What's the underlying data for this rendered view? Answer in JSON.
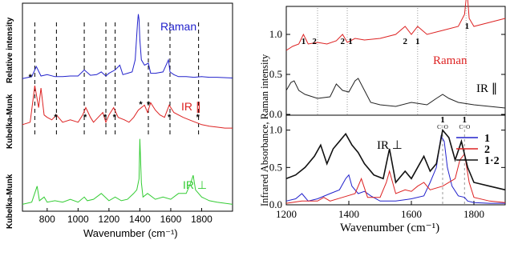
{
  "chart_data": [
    {
      "type": "line",
      "panel": "left",
      "xlabel": "Wavenumber (cm⁻¹)",
      "x_ticks": [
        800,
        1000,
        1200,
        1400,
        1600,
        1800
      ],
      "xlim": [
        640,
        2000
      ],
      "series": [
        {
          "name": "Raman",
          "color": "#2222cc",
          "ylabel": "Relative intensity",
          "x": [
            640,
            700,
            730,
            760,
            800,
            850,
            900,
            950,
            1000,
            1040,
            1080,
            1120,
            1150,
            1180,
            1200,
            1240,
            1270,
            1290,
            1320,
            1350,
            1370,
            1385,
            1390,
            1395,
            1400,
            1410,
            1430,
            1455,
            1470,
            1500,
            1550,
            1585,
            1595,
            1620,
            1650,
            1700,
            1750,
            1800,
            1850,
            1900,
            2000
          ],
          "y": [
            0.02,
            0.05,
            0.2,
            0.06,
            0.08,
            0.05,
            0.05,
            0.06,
            0.06,
            0.15,
            0.07,
            0.08,
            0.12,
            0.06,
            0.1,
            0.15,
            0.22,
            0.08,
            0.1,
            0.12,
            0.3,
            0.85,
            0.98,
            0.9,
            0.6,
            0.3,
            0.22,
            0.25,
            0.1,
            0.1,
            0.12,
            0.3,
            0.12,
            0.08,
            0.05,
            0.05,
            0.04,
            0.05,
            0.04,
            0.04,
            0.03
          ]
        },
        {
          "name": "IR ∥",
          "color": "#dd2222",
          "ylabel": "Kubelka-Munk",
          "x": [
            640,
            690,
            720,
            745,
            760,
            780,
            800,
            830,
            860,
            900,
            950,
            1000,
            1030,
            1050,
            1080,
            1100,
            1130,
            1160,
            1180,
            1200,
            1230,
            1260,
            1300,
            1330,
            1360,
            1390,
            1410,
            1430,
            1450,
            1470,
            1500,
            1530,
            1560,
            1590,
            1620,
            1650,
            1680,
            1720,
            1760,
            1800,
            1850,
            1900,
            1950,
            2000
          ],
          "y": [
            0.15,
            0.2,
            0.95,
            0.5,
            0.9,
            0.35,
            0.3,
            0.25,
            0.35,
            0.2,
            0.25,
            0.2,
            0.35,
            0.5,
            0.3,
            0.2,
            0.3,
            0.4,
            0.2,
            0.35,
            0.5,
            0.3,
            0.25,
            0.2,
            0.3,
            0.45,
            0.5,
            0.55,
            0.4,
            0.6,
            0.45,
            0.35,
            0.3,
            0.55,
            0.4,
            0.35,
            0.3,
            0.25,
            0.2,
            0.15,
            0.12,
            0.1,
            0.08,
            0.08
          ]
        },
        {
          "name": "IR ⊥",
          "color": "#33cc33",
          "ylabel": "Kubelka-Munk",
          "x": [
            640,
            700,
            735,
            750,
            780,
            800,
            850,
            900,
            950,
            1000,
            1040,
            1060,
            1100,
            1150,
            1200,
            1240,
            1280,
            1320,
            1360,
            1380,
            1395,
            1400,
            1410,
            1420,
            1450,
            1500,
            1550,
            1600,
            1650,
            1700,
            1730,
            1745,
            1760,
            1800,
            1850,
            1900,
            2000
          ],
          "y": [
            0.05,
            0.08,
            0.3,
            0.1,
            0.15,
            0.08,
            0.1,
            0.08,
            0.12,
            0.08,
            0.15,
            0.1,
            0.12,
            0.2,
            0.1,
            0.15,
            0.1,
            0.12,
            0.2,
            0.25,
            0.4,
            0.95,
            0.35,
            0.15,
            0.2,
            0.12,
            0.15,
            0.12,
            0.2,
            0.2,
            0.35,
            0.45,
            0.25,
            0.15,
            0.1,
            0.08,
            0.05
          ]
        }
      ],
      "dashed_markers_x": [
        720,
        860,
        1040,
        1180,
        1240,
        1455,
        1595,
        1780
      ],
      "asterisk_x": [
        695,
        860,
        1050,
        1180,
        1240,
        1410,
        1460,
        1595,
        1780
      ]
    },
    {
      "type": "line",
      "panel": "right-top",
      "ylabel": "Infrared Absorbance, Raman intensity",
      "xlim": [
        1200,
        1900
      ],
      "ylim": [
        0,
        1.25
      ],
      "y_ticks": [
        "0.0",
        "0.5",
        "1.0"
      ],
      "dotted_markers_x": [
        1300,
        1395,
        1620,
        1775
      ],
      "peak_labels": [
        {
          "x": 1255,
          "text": "1"
        },
        {
          "x": 1290,
          "text": "2"
        },
        {
          "x": 1380,
          "text": "2"
        },
        {
          "x": 1405,
          "text": "1"
        },
        {
          "x": 1580,
          "text": "2"
        },
        {
          "x": 1620,
          "text": "1"
        },
        {
          "x": 1778,
          "text": "1"
        }
      ],
      "series": [
        {
          "name": "Raman",
          "color": "#dd2222",
          "x": [
            1200,
            1220,
            1240,
            1255,
            1270,
            1300,
            1330,
            1360,
            1380,
            1395,
            1420,
            1450,
            1500,
            1550,
            1580,
            1600,
            1620,
            1650,
            1700,
            1750,
            1770,
            1778,
            1785,
            1800,
            1850,
            1900
          ],
          "y": [
            0.8,
            0.85,
            0.88,
            1.0,
            0.88,
            0.9,
            0.88,
            0.92,
            1.0,
            0.9,
            0.95,
            0.93,
            0.95,
            1.0,
            1.1,
            1.0,
            1.1,
            1.0,
            1.05,
            1.1,
            1.25,
            1.55,
            1.2,
            1.1,
            1.15,
            1.2
          ]
        },
        {
          "name": "IR ∥",
          "color": "#222222",
          "x": [
            1200,
            1215,
            1225,
            1240,
            1260,
            1300,
            1340,
            1360,
            1380,
            1400,
            1420,
            1430,
            1450,
            1470,
            1500,
            1550,
            1600,
            1650,
            1680,
            1700,
            1720,
            1750,
            1800,
            1850,
            1900
          ],
          "y": [
            0.3,
            0.4,
            0.42,
            0.3,
            0.25,
            0.2,
            0.22,
            0.38,
            0.3,
            0.28,
            0.42,
            0.45,
            0.3,
            0.15,
            0.12,
            0.1,
            0.15,
            0.12,
            0.2,
            0.25,
            0.2,
            0.15,
            0.12,
            0.1,
            0.08
          ]
        }
      ]
    },
    {
      "type": "line",
      "panel": "right-bottom",
      "xlabel": "Wavenumber (cm⁻¹)",
      "xlim": [
        1200,
        1900
      ],
      "ylim": [
        0,
        1.2
      ],
      "x_ticks": [
        1200,
        1400,
        1600,
        1800
      ],
      "y_ticks": [
        "0.0",
        "0.5",
        "1.0"
      ],
      "dashed_markers_x": [
        1700,
        1770
      ],
      "annotations": [
        {
          "x": 1700,
          "text": "1",
          "sub": "C=O"
        },
        {
          "x": 1770,
          "text": "1",
          "sub": "C=O"
        }
      ],
      "series": [
        {
          "name": "1",
          "color": "#2222cc",
          "x": [
            1200,
            1230,
            1250,
            1270,
            1300,
            1340,
            1370,
            1390,
            1400,
            1410,
            1430,
            1450,
            1470,
            1500,
            1550,
            1600,
            1640,
            1660,
            1680,
            1695,
            1705,
            1715,
            1730,
            1750,
            1770,
            1780,
            1800,
            1850,
            1900
          ],
          "y": [
            0.05,
            0.08,
            0.15,
            0.05,
            0.08,
            0.15,
            0.2,
            0.35,
            0.4,
            0.25,
            0.15,
            0.18,
            0.12,
            0.05,
            0.05,
            0.08,
            0.12,
            0.3,
            0.5,
            0.92,
            0.85,
            0.5,
            0.25,
            0.12,
            0.1,
            0.05,
            0.03,
            0.02,
            0.02
          ]
        },
        {
          "name": "2",
          "color": "#dd2222",
          "x": [
            1200,
            1250,
            1300,
            1320,
            1340,
            1380,
            1420,
            1440,
            1460,
            1500,
            1520,
            1530,
            1550,
            1580,
            1600,
            1620,
            1640,
            1660,
            1700,
            1740,
            1755,
            1770,
            1785,
            1800,
            1850,
            1900
          ],
          "y": [
            0.02,
            0.05,
            0.05,
            0.1,
            0.05,
            0.1,
            0.15,
            0.35,
            0.1,
            0.1,
            0.3,
            0.45,
            0.15,
            0.2,
            0.18,
            0.25,
            0.3,
            0.2,
            0.25,
            0.35,
            0.6,
            0.68,
            0.3,
            0.1,
            0.05,
            0.03
          ]
        },
        {
          "name": "1·2",
          "color": "#111111",
          "x": [
            1200,
            1230,
            1260,
            1290,
            1310,
            1330,
            1350,
            1370,
            1390,
            1410,
            1430,
            1450,
            1480,
            1510,
            1530,
            1550,
            1580,
            1600,
            1620,
            1640,
            1660,
            1680,
            1700,
            1720,
            1740,
            1760,
            1780,
            1800,
            1850,
            1900
          ],
          "y": [
            0.35,
            0.4,
            0.5,
            0.65,
            0.8,
            0.55,
            0.75,
            0.85,
            0.95,
            0.8,
            0.7,
            0.55,
            0.4,
            0.35,
            0.75,
            0.3,
            0.45,
            0.35,
            0.5,
            0.65,
            0.45,
            0.55,
            1.0,
            0.9,
            0.6,
            0.85,
            0.5,
            0.3,
            0.25,
            0.2
          ]
        }
      ]
    }
  ],
  "labels": {
    "left_raman": "Raman",
    "left_ir_par": "IR ∥",
    "left_ir_perp": "IR ⊥",
    "left_ylabel_1": "Relative intensity",
    "left_ylabel_2": "Kubelka-Munk",
    "left_ylabel_3": "Kubelka-Munk",
    "left_xlabel": "Wavenumber (cm⁻¹)",
    "right_raman": "Raman",
    "right_ir_par": "IR ∥",
    "right_ir_perp": "IR ⊥",
    "right_ylabel": "Infrared Absorbance, Raman intensity",
    "right_xlabel": "Wavenumber (cm⁻¹)"
  }
}
